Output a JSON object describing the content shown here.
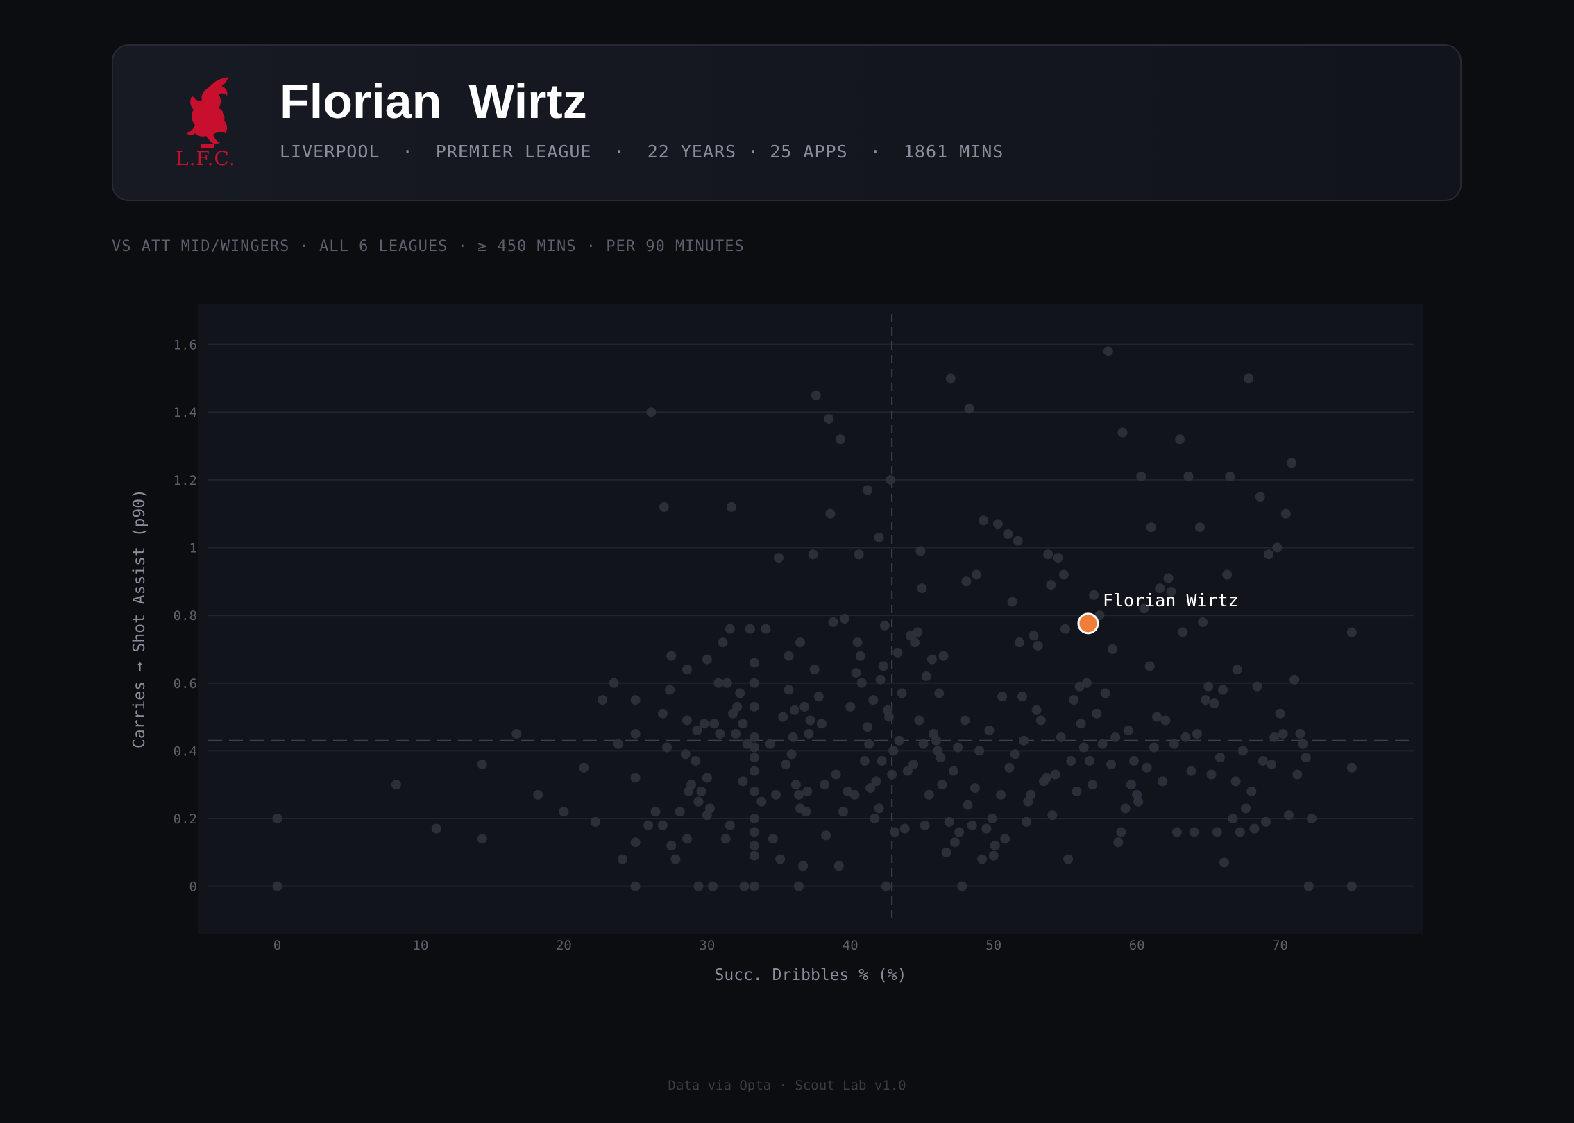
{
  "header": {
    "player_name": "Florian  Wirtz",
    "meta": "LIVERPOOL  ·  PREMIER LEAGUE  ·  22 YEARS · 25 APPS  ·  1861 MINS",
    "crest_icon": "liverbird-crest-icon",
    "crest_text": "L.F.C.",
    "crest_color": "#c8102e"
  },
  "context": "VS ATT MID/WINGERS · ALL 6 LEAGUES · ≥ 450 MINS · PER 90 MINUTES",
  "footer": "Data via Opta · Scout Lab v1.0",
  "chart_data": {
    "type": "scatter",
    "xlabel": "Succ. Dribbles % (%)",
    "ylabel": "Carries → Shot Assist (p90)",
    "xlim": [
      -5.5,
      80
    ],
    "ylim": [
      -0.14,
      1.72
    ],
    "x_ticks": [
      0,
      10,
      20,
      30,
      40,
      50,
      60,
      70
    ],
    "y_ticks": [
      0,
      0.2,
      0.4,
      0.6,
      0.8,
      1,
      1.2,
      1.4,
      1.6
    ],
    "x_tick_labels": [
      "0",
      "10",
      "20",
      "30",
      "40",
      "50",
      "60",
      "70"
    ],
    "y_tick_labels": [
      "0",
      "0.2",
      "0.4",
      "0.6",
      "0.8",
      "1",
      "1.2",
      "1.4",
      "1.6"
    ],
    "grid": "horizontal",
    "reference_lines": {
      "x": 42.9,
      "y": 0.43
    },
    "highlight": {
      "label": "Florian Wirtz",
      "x": 56.6,
      "y": 0.776,
      "color": "#f07d38"
    },
    "colors": {
      "dot": "#2f323c",
      "highlight": "#f07d38"
    },
    "points": [
      [
        0,
        0.2
      ],
      [
        0,
        0
      ],
      [
        8.3,
        0.3
      ],
      [
        11.1,
        0.17
      ],
      [
        14.3,
        0.14
      ],
      [
        14.3,
        0.36
      ],
      [
        16.7,
        0.45
      ],
      [
        18.2,
        0.27
      ],
      [
        20,
        0.22
      ],
      [
        21.4,
        0.35
      ],
      [
        22.2,
        0.19
      ],
      [
        22.7,
        0.55
      ],
      [
        23.5,
        0.6
      ],
      [
        23.8,
        0.42
      ],
      [
        24.1,
        0.08
      ],
      [
        25,
        0
      ],
      [
        25,
        0.13
      ],
      [
        25,
        0.32
      ],
      [
        25,
        0.45
      ],
      [
        25,
        0.55
      ],
      [
        25.9,
        0.18
      ],
      [
        26.1,
        1.4
      ],
      [
        26.4,
        0.22
      ],
      [
        26.9,
        0.18
      ],
      [
        26.9,
        0.51
      ],
      [
        27,
        1.12
      ],
      [
        27.2,
        0.41
      ],
      [
        27.4,
        0.58
      ],
      [
        27.5,
        0.68
      ],
      [
        27.5,
        0.12
      ],
      [
        27.8,
        0.08
      ],
      [
        28.1,
        0.22
      ],
      [
        28.5,
        0.39
      ],
      [
        28.6,
        0.64
      ],
      [
        28.6,
        0.49
      ],
      [
        28.6,
        0.14
      ],
      [
        28.7,
        0.28
      ],
      [
        28.9,
        0.3
      ],
      [
        29.2,
        0.37
      ],
      [
        29.3,
        0.46
      ],
      [
        29.4,
        0.25
      ],
      [
        29.4,
        0
      ],
      [
        29.6,
        0.28
      ],
      [
        29.8,
        0.48
      ],
      [
        30,
        0.21
      ],
      [
        30,
        0.67
      ],
      [
        30,
        0.32
      ],
      [
        30.2,
        0.23
      ],
      [
        30.4,
        0
      ],
      [
        30.5,
        0.48
      ],
      [
        30.8,
        0.6
      ],
      [
        30.9,
        0.45
      ],
      [
        31.1,
        0.72
      ],
      [
        31.3,
        0.14
      ],
      [
        31.4,
        0.6
      ],
      [
        31.6,
        0.18
      ],
      [
        31.6,
        0.76
      ],
      [
        31.7,
        1.12
      ],
      [
        31.8,
        0.51
      ],
      [
        32,
        0.45
      ],
      [
        32.1,
        0.53
      ],
      [
        32.3,
        0.57
      ],
      [
        32.5,
        0.48
      ],
      [
        32.5,
        0.31
      ],
      [
        32.6,
        0
      ],
      [
        32.8,
        0.42
      ],
      [
        33,
        0.76
      ],
      [
        33.3,
        0
      ],
      [
        33.3,
        0.09
      ],
      [
        33.3,
        0.12
      ],
      [
        33.3,
        0.16
      ],
      [
        33.3,
        0.2
      ],
      [
        33.3,
        0.28
      ],
      [
        33.3,
        0.34
      ],
      [
        33.3,
        0.38
      ],
      [
        33.3,
        0.41
      ],
      [
        33.3,
        0.44
      ],
      [
        33.3,
        0.53
      ],
      [
        33.3,
        0.6
      ],
      [
        33.3,
        0.66
      ],
      [
        33.8,
        0.25
      ],
      [
        34.1,
        0.76
      ],
      [
        34.4,
        0.42
      ],
      [
        34.6,
        0.14
      ],
      [
        34.8,
        0.27
      ],
      [
        35,
        0.97
      ],
      [
        35.1,
        0.08
      ],
      [
        35.3,
        0.5
      ],
      [
        35.5,
        0.36
      ],
      [
        35.7,
        0.68
      ],
      [
        35.7,
        0.58
      ],
      [
        35.9,
        0.39
      ],
      [
        36,
        0.44
      ],
      [
        36.1,
        0.52
      ],
      [
        36.2,
        0.3
      ],
      [
        36.4,
        0.27
      ],
      [
        36.4,
        0
      ],
      [
        36.5,
        0.72
      ],
      [
        36.5,
        0.23
      ],
      [
        36.7,
        0.06
      ],
      [
        36.8,
        0.53
      ],
      [
        36.9,
        0.22
      ],
      [
        37,
        0.28
      ],
      [
        37.1,
        0.45
      ],
      [
        37.2,
        0.49
      ],
      [
        37.4,
        0.98
      ],
      [
        37.5,
        0.64
      ],
      [
        37.6,
        1.45
      ],
      [
        37.8,
        0.56
      ],
      [
        38,
        0.48
      ],
      [
        38.2,
        0.3
      ],
      [
        38.3,
        0.15
      ],
      [
        38.5,
        1.38
      ],
      [
        38.6,
        1.1
      ],
      [
        38.8,
        0.78
      ],
      [
        39,
        0.33
      ],
      [
        39.2,
        0.06
      ],
      [
        39.3,
        1.32
      ],
      [
        39.5,
        0.22
      ],
      [
        39.6,
        0.79
      ],
      [
        39.8,
        0.28
      ],
      [
        40,
        0.53
      ],
      [
        40.3,
        0.27
      ],
      [
        40.4,
        0.63
      ],
      [
        40.5,
        0.72
      ],
      [
        40.6,
        0.98
      ],
      [
        40.7,
        0.68
      ],
      [
        40.8,
        0.6
      ],
      [
        41,
        0.37
      ],
      [
        41.2,
        1.17
      ],
      [
        41.2,
        0.47
      ],
      [
        41.3,
        0.42
      ],
      [
        41.4,
        0.29
      ],
      [
        41.6,
        0.55
      ],
      [
        41.7,
        0.2
      ],
      [
        41.8,
        0.31
      ],
      [
        42,
        1.03
      ],
      [
        42,
        0.23
      ],
      [
        42.1,
        0.61
      ],
      [
        42.2,
        0.37
      ],
      [
        42.3,
        0.65
      ],
      [
        42.4,
        0.77
      ],
      [
        42.5,
        0
      ],
      [
        42.6,
        0.52
      ],
      [
        42.7,
        0.5
      ],
      [
        42.8,
        1.2
      ],
      [
        42.9,
        0.33
      ],
      [
        43,
        0.4
      ],
      [
        43.1,
        0.16
      ],
      [
        43.3,
        0.69
      ],
      [
        43.4,
        0.43
      ],
      [
        43.6,
        0.57
      ],
      [
        43.8,
        0.17
      ],
      [
        44,
        0.34
      ],
      [
        44.2,
        0.74
      ],
      [
        44.4,
        0.36
      ],
      [
        44.5,
        0.72
      ],
      [
        44.7,
        0.75
      ],
      [
        44.8,
        0.49
      ],
      [
        44.9,
        0.99
      ],
      [
        45,
        0.88
      ],
      [
        45.1,
        0.42
      ],
      [
        45.2,
        0.18
      ],
      [
        45.3,
        0.62
      ],
      [
        45.5,
        0.27
      ],
      [
        45.7,
        0.67
      ],
      [
        45.8,
        0.45
      ],
      [
        46,
        0.43
      ],
      [
        46.1,
        0.4
      ],
      [
        46.2,
        0.57
      ],
      [
        46.3,
        0.38
      ],
      [
        46.4,
        0.3
      ],
      [
        46.5,
        0.68
      ],
      [
        46.7,
        0.1
      ],
      [
        46.9,
        0.19
      ],
      [
        47,
        1.5
      ],
      [
        47.2,
        0.34
      ],
      [
        47.3,
        0.13
      ],
      [
        47.5,
        0.41
      ],
      [
        47.6,
        0.16
      ],
      [
        47.8,
        0
      ],
      [
        48,
        0.49
      ],
      [
        48.1,
        0.9
      ],
      [
        48.2,
        0.24
      ],
      [
        48.3,
        1.41
      ],
      [
        48.5,
        0.18
      ],
      [
        48.7,
        0.29
      ],
      [
        48.8,
        0.92
      ],
      [
        49,
        0.4
      ],
      [
        49.2,
        0.08
      ],
      [
        49.3,
        1.08
      ],
      [
        49.5,
        0.17
      ],
      [
        49.7,
        0.46
      ],
      [
        49.9,
        0.2
      ],
      [
        50,
        0.09
      ],
      [
        50.1,
        0.12
      ],
      [
        50.3,
        1.07
      ],
      [
        50.5,
        0.27
      ],
      [
        50.6,
        0.56
      ],
      [
        50.8,
        0.14
      ],
      [
        51,
        1.04
      ],
      [
        51.1,
        0.35
      ],
      [
        51.3,
        0.84
      ],
      [
        51.5,
        0.39
      ],
      [
        51.7,
        1.02
      ],
      [
        51.8,
        0.72
      ],
      [
        52,
        0.56
      ],
      [
        52.1,
        0.43
      ],
      [
        52.3,
        0.19
      ],
      [
        52.4,
        0.25
      ],
      [
        52.6,
        0.27
      ],
      [
        52.8,
        0.74
      ],
      [
        53,
        0.52
      ],
      [
        53.1,
        0.71
      ],
      [
        53.3,
        0.49
      ],
      [
        53.5,
        0.31
      ],
      [
        53.7,
        0.32
      ],
      [
        53.8,
        0.98
      ],
      [
        54,
        0.89
      ],
      [
        54.1,
        0.21
      ],
      [
        54.3,
        0.33
      ],
      [
        54.5,
        0.97
      ],
      [
        54.7,
        0.44
      ],
      [
        54.9,
        0.92
      ],
      [
        55,
        0.76
      ],
      [
        55.2,
        0.08
      ],
      [
        55.4,
        0.37
      ],
      [
        55.6,
        0.55
      ],
      [
        55.8,
        0.28
      ],
      [
        56,
        0.59
      ],
      [
        56.1,
        0.48
      ],
      [
        56.3,
        0.41
      ],
      [
        56.5,
        0.6
      ],
      [
        56.7,
        0.37
      ],
      [
        56.9,
        0.3
      ],
      [
        57,
        0.86
      ],
      [
        57.2,
        0.51
      ],
      [
        57.4,
        0.8
      ],
      [
        57.6,
        0.42
      ],
      [
        57.8,
        0.57
      ],
      [
        58,
        1.58
      ],
      [
        58.2,
        0.36
      ],
      [
        58.3,
        0.7
      ],
      [
        58.5,
        0.44
      ],
      [
        58.7,
        0.13
      ],
      [
        58.9,
        0.16
      ],
      [
        59,
        1.34
      ],
      [
        59.2,
        0.23
      ],
      [
        59.4,
        0.46
      ],
      [
        59.6,
        0.3
      ],
      [
        59.8,
        0.37
      ],
      [
        60,
        0.27
      ],
      [
        60.1,
        0.25
      ],
      [
        60.3,
        1.21
      ],
      [
        60.5,
        0.82
      ],
      [
        60.7,
        0.35
      ],
      [
        60.9,
        0.65
      ],
      [
        61,
        1.06
      ],
      [
        61.2,
        0.41
      ],
      [
        61.4,
        0.5
      ],
      [
        61.6,
        0.88
      ],
      [
        61.8,
        0.31
      ],
      [
        62,
        0.49
      ],
      [
        62.2,
        0.91
      ],
      [
        62.4,
        0.87
      ],
      [
        62.6,
        0.42
      ],
      [
        62.8,
        0.16
      ],
      [
        63,
        1.32
      ],
      [
        63.2,
        0.75
      ],
      [
        63.4,
        0.44
      ],
      [
        63.6,
        1.21
      ],
      [
        63.8,
        0.34
      ],
      [
        64,
        0.16
      ],
      [
        64.2,
        0.45
      ],
      [
        64.4,
        1.06
      ],
      [
        64.6,
        0.78
      ],
      [
        64.8,
        0.55
      ],
      [
        65,
        0.59
      ],
      [
        65.2,
        0.33
      ],
      [
        65.4,
        0.54
      ],
      [
        65.6,
        0.16
      ],
      [
        65.8,
        0.38
      ],
      [
        66,
        0.58
      ],
      [
        66.1,
        0.07
      ],
      [
        66.3,
        0.92
      ],
      [
        66.5,
        1.21
      ],
      [
        66.7,
        0.2
      ],
      [
        66.9,
        0.31
      ],
      [
        67,
        0.64
      ],
      [
        67.2,
        0.16
      ],
      [
        67.4,
        0.4
      ],
      [
        67.6,
        0.23
      ],
      [
        67.8,
        1.5
      ],
      [
        68,
        0.28
      ],
      [
        68.2,
        0.17
      ],
      [
        68.4,
        0.59
      ],
      [
        68.6,
        1.15
      ],
      [
        68.8,
        0.37
      ],
      [
        69,
        0.19
      ],
      [
        69.2,
        0.98
      ],
      [
        69.4,
        0.36
      ],
      [
        69.6,
        0.44
      ],
      [
        69.8,
        1.0
      ],
      [
        70,
        0.51
      ],
      [
        70.2,
        0.45
      ],
      [
        70.4,
        1.1
      ],
      [
        70.6,
        0.21
      ],
      [
        70.8,
        1.25
      ],
      [
        71,
        0.61
      ],
      [
        71.2,
        0.33
      ],
      [
        71.4,
        0.45
      ],
      [
        71.6,
        0.42
      ],
      [
        71.8,
        0.38
      ],
      [
        72,
        0
      ],
      [
        72.2,
        0.2
      ],
      [
        75,
        0.75
      ],
      [
        75,
        0.35
      ],
      [
        75,
        0
      ]
    ]
  }
}
